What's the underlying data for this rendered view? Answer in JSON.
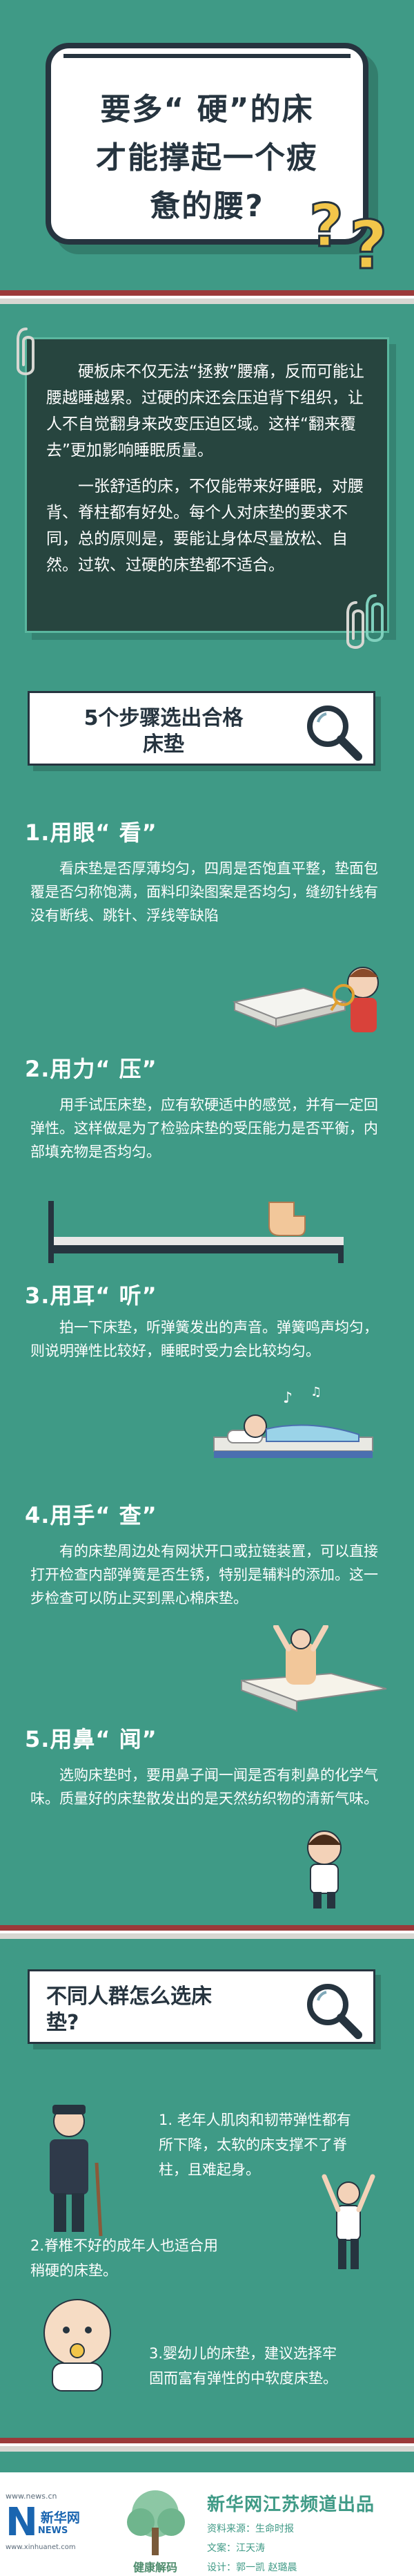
{
  "header": {
    "title_lines": [
      "要多“ 硬”的床",
      "才能撑起一个疲",
      "惫的腰?"
    ]
  },
  "intro": {
    "paragraphs": [
      "硬板床不仅无法“拯救”腰痛，反而可能让腰越睡越累。过硬的床还会压迫背下组织，让人不自觉翻身来改变压迫区域。这样“翻来覆去”更加影响睡眠质量。",
      "一张舒适的床，不仅能带来好睡眠，对腰背、脊柱都有好处。每个人对床垫的要求不同，总的原则是，要能让身体尽量放松、自然。过软、过硬的床垫都不适合。"
    ]
  },
  "steps_section": {
    "heading_lines": [
      "5个步骤选出合格",
      "床垫"
    ],
    "steps": [
      {
        "title": "1.用眼“ 看”",
        "text": "看床垫是否厚薄均匀，四周是否饱直平整，垫面包覆是否匀称饱满，面料印染图案是否均匀，缝纫针线有没有断线、跳针、浮线等缺陷"
      },
      {
        "title": "2.用力“ 压”",
        "text": "用手试压床垫，应有软硬适中的感觉，并有一定回弹性。这样做是为了检验床垫的受压能力是否平衡，内部填充物是否均匀。"
      },
      {
        "title": "3.用耳“ 听”",
        "text": "拍一下床垫，听弹簧发出的声音。弹簧鸣声均匀，则说明弹性比较好，睡眠时受力会比较均匀。"
      },
      {
        "title": "4.用手“ 查”",
        "text": "有的床垫周边处有网状开口或拉链装置，可以直接打开检查内部弹簧是否生锈，特别是辅料的添加。这一步检查可以防止买到黑心棉床垫。"
      },
      {
        "title": "5.用鼻“ 闻”",
        "text": "选购床垫时，要用鼻子闻一闻是否有刺鼻的化学气味。质量好的床垫散发出的是天然纺织物的清新气味。"
      }
    ]
  },
  "groups_section": {
    "heading_lines": [
      "不同人群怎么选床",
      "垫?"
    ],
    "groups": [
      {
        "lines": [
          "1. 老年人肌肉和韧带弹性都有",
          "所下降，太软的床支撑不了脊",
          "柱，且难起身。"
        ]
      },
      {
        "lines": [
          "2.脊椎不好的成年人也适合用",
          "稍硬的床垫。"
        ]
      },
      {
        "lines": [
          "3.婴幼儿的床垫，建议选择牢",
          "固而富有弹性的中软度床垫。"
        ]
      }
    ]
  },
  "footer": {
    "logo": {
      "url_top": "www.news.cn",
      "mark": "N",
      "name": "新华网",
      "news": "NEWS",
      "url_bottom": "www.xinhuanet.com"
    },
    "tree_caption": "健康解码",
    "org": "新华网江苏频道出品",
    "credits": [
      "资料来源：生命时报",
      "文案：江天涛",
      "设计：郭一凯  赵璐晨"
    ]
  },
  "colors": {
    "background": "#3f9a86",
    "dark": "#26343f",
    "accent_red": "#9b3a3a",
    "intro_panel": "#27453f"
  }
}
